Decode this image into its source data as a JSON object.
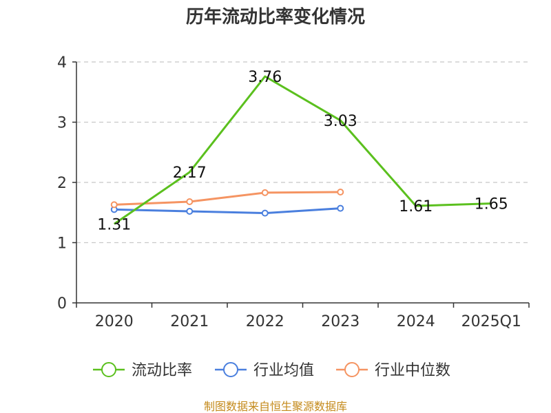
{
  "chart_data": {
    "type": "line",
    "title": "历年流动比率变化情况",
    "categories": [
      "2020",
      "2021",
      "2022",
      "2023",
      "2024",
      "2025Q1"
    ],
    "ylim": [
      0,
      4
    ],
    "yticks": [
      "0",
      "1",
      "2",
      "3",
      "4"
    ],
    "grid": true,
    "legend_position": "bottom",
    "series": [
      {
        "name": "流动比率",
        "color": "#5bc01e",
        "values": [
          1.31,
          2.17,
          3.76,
          3.03,
          1.61,
          1.65
        ],
        "labels": [
          "1.31",
          "2.17",
          "3.76",
          "3.03",
          "1.61",
          "1.65"
        ],
        "markers": false
      },
      {
        "name": "行业均值",
        "color": "#4a7fde",
        "values": [
          1.55,
          1.52,
          1.49,
          1.57,
          null,
          null
        ],
        "markers": true
      },
      {
        "name": "行业中位数",
        "color": "#f59462",
        "values": [
          1.63,
          1.68,
          1.83,
          1.84,
          null,
          null
        ],
        "markers": true
      }
    ]
  },
  "footer": "制图数据来自恒生聚源数据库"
}
